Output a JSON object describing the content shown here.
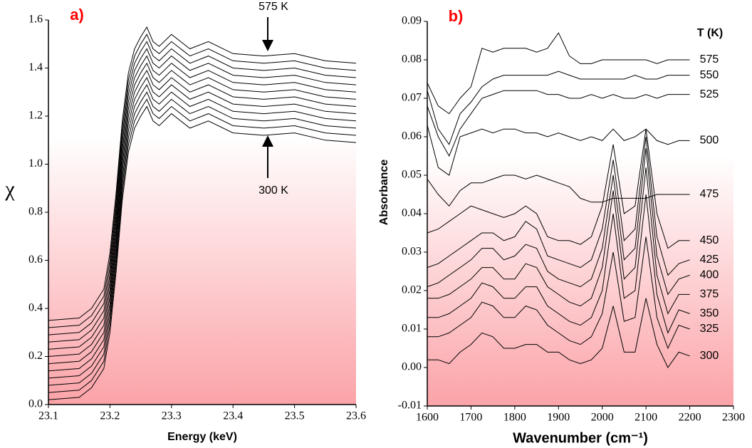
{
  "chart_data": [
    {
      "type": "line",
      "title": "a)",
      "xlabel": "Energy (keV)",
      "ylabel": "χ",
      "annotations": [
        "575 K",
        "300 K"
      ],
      "color": "#000000",
      "title_color": "#ff0000",
      "x": [
        23.1,
        23.15,
        23.17,
        23.19,
        23.2,
        23.21,
        23.22,
        23.23,
        23.24,
        23.25,
        23.26,
        23.27,
        23.28,
        23.3,
        23.33,
        23.36,
        23.4,
        23.45,
        23.5,
        23.55,
        23.6
      ],
      "series": [
        {
          "values": [
            0.02,
            0.03,
            0.07,
            0.15,
            0.3,
            0.55,
            0.85,
            1.05,
            1.15,
            1.2,
            1.24,
            1.18,
            1.16,
            1.21,
            1.15,
            1.18,
            1.13,
            1.12,
            1.13,
            1.1,
            1.09
          ]
        },
        {
          "values": [
            0.05,
            0.06,
            0.1,
            0.18,
            0.33,
            0.58,
            0.88,
            1.08,
            1.18,
            1.23,
            1.27,
            1.21,
            1.19,
            1.24,
            1.18,
            1.21,
            1.16,
            1.15,
            1.16,
            1.13,
            1.12
          ]
        },
        {
          "values": [
            0.08,
            0.09,
            0.13,
            0.21,
            0.36,
            0.61,
            0.91,
            1.11,
            1.21,
            1.26,
            1.3,
            1.24,
            1.22,
            1.27,
            1.21,
            1.24,
            1.19,
            1.18,
            1.19,
            1.16,
            1.15
          ]
        },
        {
          "values": [
            0.11,
            0.12,
            0.16,
            0.24,
            0.39,
            0.64,
            0.94,
            1.14,
            1.24,
            1.29,
            1.33,
            1.27,
            1.25,
            1.3,
            1.24,
            1.27,
            1.22,
            1.21,
            1.22,
            1.19,
            1.18
          ]
        },
        {
          "values": [
            0.14,
            0.15,
            0.19,
            0.27,
            0.42,
            0.67,
            0.97,
            1.17,
            1.27,
            1.32,
            1.36,
            1.3,
            1.28,
            1.33,
            1.27,
            1.3,
            1.25,
            1.24,
            1.25,
            1.22,
            1.21
          ]
        },
        {
          "values": [
            0.17,
            0.18,
            0.22,
            0.3,
            0.45,
            0.7,
            1.0,
            1.2,
            1.3,
            1.35,
            1.39,
            1.33,
            1.31,
            1.36,
            1.3,
            1.33,
            1.28,
            1.27,
            1.28,
            1.25,
            1.24
          ]
        },
        {
          "values": [
            0.2,
            0.21,
            0.25,
            0.33,
            0.48,
            0.73,
            1.03,
            1.23,
            1.33,
            1.38,
            1.42,
            1.36,
            1.34,
            1.39,
            1.33,
            1.36,
            1.31,
            1.3,
            1.31,
            1.28,
            1.27
          ]
        },
        {
          "values": [
            0.23,
            0.24,
            0.28,
            0.36,
            0.51,
            0.76,
            1.06,
            1.26,
            1.36,
            1.41,
            1.45,
            1.39,
            1.37,
            1.42,
            1.36,
            1.39,
            1.34,
            1.33,
            1.34,
            1.31,
            1.3
          ]
        },
        {
          "values": [
            0.26,
            0.27,
            0.31,
            0.39,
            0.54,
            0.79,
            1.09,
            1.29,
            1.39,
            1.44,
            1.48,
            1.42,
            1.4,
            1.45,
            1.39,
            1.42,
            1.37,
            1.36,
            1.37,
            1.34,
            1.33
          ]
        },
        {
          "values": [
            0.29,
            0.3,
            0.34,
            0.42,
            0.57,
            0.82,
            1.12,
            1.32,
            1.42,
            1.47,
            1.51,
            1.45,
            1.43,
            1.48,
            1.42,
            1.45,
            1.4,
            1.39,
            1.4,
            1.37,
            1.36
          ]
        },
        {
          "values": [
            0.32,
            0.33,
            0.37,
            0.45,
            0.6,
            0.85,
            1.15,
            1.35,
            1.45,
            1.5,
            1.54,
            1.48,
            1.46,
            1.51,
            1.45,
            1.48,
            1.43,
            1.42,
            1.43,
            1.4,
            1.39
          ]
        },
        {
          "values": [
            0.35,
            0.36,
            0.4,
            0.48,
            0.63,
            0.88,
            1.18,
            1.38,
            1.48,
            1.53,
            1.57,
            1.51,
            1.49,
            1.54,
            1.48,
            1.51,
            1.46,
            1.45,
            1.46,
            1.43,
            1.42
          ]
        }
      ],
      "xlim": [
        23.1,
        23.6
      ],
      "xticks": [
        23.1,
        23.2,
        23.3,
        23.4,
        23.5,
        23.6
      ],
      "ylim": [
        0,
        1.6
      ],
      "yticks": [
        {
          "value": 0,
          "label": "0.0"
        },
        0.2,
        0.4,
        0.6,
        0.8,
        {
          "value": 1,
          "label": "1.0"
        },
        1.2,
        1.4,
        1.6
      ]
    },
    {
      "type": "line",
      "title": "b)",
      "xlabel": "Wavenumber (cm⁻¹)",
      "ylabel": "Absorbance",
      "legend_title": "T (K)",
      "color": "#000000",
      "title_color": "#ff0000",
      "x": [
        1600,
        1625,
        1650,
        1675,
        1700,
        1725,
        1750,
        1775,
        1800,
        1825,
        1850,
        1875,
        1900,
        1925,
        1950,
        1975,
        2000,
        2025,
        2050,
        2075,
        2100,
        2125,
        2150,
        2175,
        2200
      ],
      "series": [
        {
          "name": "575",
          "values": [
            0.074,
            0.068,
            0.066,
            0.07,
            0.073,
            0.083,
            0.082,
            0.083,
            0.083,
            0.083,
            0.082,
            0.083,
            0.087,
            0.081,
            0.079,
            0.079,
            0.08,
            0.08,
            0.08,
            0.08,
            0.08,
            0.079,
            0.08,
            0.08,
            0.08
          ]
        },
        {
          "name": "550",
          "values": [
            0.072,
            0.062,
            0.058,
            0.066,
            0.069,
            0.073,
            0.075,
            0.076,
            0.076,
            0.076,
            0.076,
            0.076,
            0.077,
            0.076,
            0.075,
            0.075,
            0.075,
            0.075,
            0.075,
            0.076,
            0.075,
            0.075,
            0.076,
            0.076,
            0.076
          ]
        },
        {
          "name": "525",
          "values": [
            0.068,
            0.06,
            0.055,
            0.062,
            0.066,
            0.07,
            0.071,
            0.072,
            0.072,
            0.072,
            0.072,
            0.071,
            0.071,
            0.07,
            0.07,
            0.071,
            0.07,
            0.071,
            0.07,
            0.07,
            0.071,
            0.07,
            0.071,
            0.071,
            0.071
          ]
        },
        {
          "name": "500",
          "values": [
            0.063,
            0.052,
            0.05,
            0.06,
            0.061,
            0.062,
            0.061,
            0.062,
            0.062,
            0.061,
            0.061,
            0.06,
            0.061,
            0.06,
            0.059,
            0.06,
            0.059,
            0.062,
            0.059,
            0.06,
            0.062,
            0.059,
            0.058,
            0.059,
            0.059
          ]
        },
        {
          "name": "475",
          "values": [
            0.049,
            0.045,
            0.042,
            0.046,
            0.048,
            0.048,
            0.049,
            0.05,
            0.05,
            0.049,
            0.05,
            0.049,
            0.048,
            0.047,
            0.044,
            0.043,
            0.043,
            0.044,
            0.044,
            0.044,
            0.044,
            0.045,
            0.045,
            0.045,
            0.045
          ]
        },
        {
          "name": "450",
          "values": [
            0.035,
            0.036,
            0.038,
            0.04,
            0.042,
            0.041,
            0.04,
            0.039,
            0.04,
            0.042,
            0.04,
            0.034,
            0.033,
            0.033,
            0.032,
            0.034,
            0.042,
            0.058,
            0.04,
            0.042,
            0.062,
            0.04,
            0.031,
            0.033,
            0.033
          ]
        },
        {
          "name": "425",
          "values": [
            0.026,
            0.027,
            0.029,
            0.031,
            0.033,
            0.035,
            0.035,
            0.033,
            0.034,
            0.038,
            0.036,
            0.029,
            0.028,
            0.027,
            0.026,
            0.028,
            0.036,
            0.054,
            0.033,
            0.036,
            0.06,
            0.034,
            0.024,
            0.027,
            0.028
          ]
        },
        {
          "name": "400",
          "values": [
            0.021,
            0.022,
            0.024,
            0.026,
            0.028,
            0.031,
            0.031,
            0.028,
            0.029,
            0.032,
            0.031,
            0.025,
            0.023,
            0.022,
            0.021,
            0.023,
            0.031,
            0.05,
            0.028,
            0.031,
            0.057,
            0.029,
            0.019,
            0.023,
            0.024
          ]
        },
        {
          "name": "375",
          "values": [
            0.018,
            0.018,
            0.019,
            0.021,
            0.023,
            0.026,
            0.026,
            0.023,
            0.023,
            0.027,
            0.026,
            0.021,
            0.019,
            0.017,
            0.016,
            0.018,
            0.026,
            0.046,
            0.023,
            0.026,
            0.052,
            0.024,
            0.014,
            0.019,
            0.019
          ]
        },
        {
          "name": "350",
          "values": [
            0.013,
            0.013,
            0.014,
            0.016,
            0.018,
            0.022,
            0.021,
            0.018,
            0.018,
            0.021,
            0.021,
            0.016,
            0.014,
            0.012,
            0.011,
            0.013,
            0.02,
            0.04,
            0.018,
            0.02,
            0.045,
            0.019,
            0.009,
            0.015,
            0.014
          ]
        },
        {
          "name": "325",
          "values": [
            0.008,
            0.008,
            0.009,
            0.011,
            0.013,
            0.017,
            0.016,
            0.013,
            0.013,
            0.016,
            0.015,
            0.011,
            0.009,
            0.007,
            0.006,
            0.008,
            0.014,
            0.03,
            0.012,
            0.013,
            0.034,
            0.013,
            0.005,
            0.011,
            0.01
          ]
        },
        {
          "name": "300",
          "values": [
            0.002,
            0.002,
            0.001,
            0.004,
            0.006,
            0.009,
            0.008,
            0.005,
            0.005,
            0.006,
            0.006,
            0.004,
            0.004,
            0.002,
            0.001,
            0.002,
            0.005,
            0.016,
            0.004,
            0.004,
            0.018,
            0.006,
            0.0,
            0.004,
            0.003
          ]
        }
      ],
      "xlim": [
        1600,
        2300
      ],
      "xticks": [
        1600,
        1700,
        1800,
        1900,
        2000,
        2100,
        2200,
        2300
      ],
      "ylim": [
        -0.01,
        0.09
      ],
      "yticks": [
        -0.01,
        {
          "value": 0,
          "label": "0.00"
        },
        0.01,
        0.02,
        0.03,
        0.04,
        0.05,
        0.06,
        0.07,
        0.08,
        0.09
      ]
    }
  ]
}
